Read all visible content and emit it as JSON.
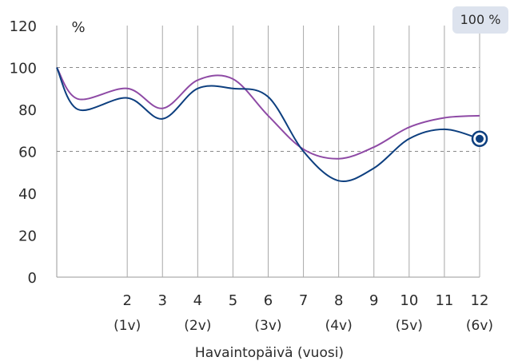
{
  "chart_data": {
    "type": "line",
    "unit_label": "%",
    "badge": "100 %",
    "xlabel": "Havaintopäivä (vuosi)",
    "ylim": [
      0,
      120
    ],
    "yticks": [
      0,
      20,
      40,
      60,
      80,
      100,
      120
    ],
    "xlim": [
      0,
      12
    ],
    "xticks": [
      {
        "x": 2,
        "label": "2",
        "sub": "(1v)"
      },
      {
        "x": 3,
        "label": "3",
        "sub": ""
      },
      {
        "x": 4,
        "label": "4",
        "sub": "(2v)"
      },
      {
        "x": 5,
        "label": "5",
        "sub": ""
      },
      {
        "x": 6,
        "label": "6",
        "sub": "(3v)"
      },
      {
        "x": 7,
        "label": "7",
        "sub": ""
      },
      {
        "x": 8,
        "label": "8",
        "sub": "(4v)"
      },
      {
        "x": 9,
        "label": "9",
        "sub": ""
      },
      {
        "x": 10,
        "label": "10",
        "sub": "(5v)"
      },
      {
        "x": 11,
        "label": "11",
        "sub": ""
      },
      {
        "x": 12,
        "label": "12",
        "sub": "(6v)"
      }
    ],
    "dashed_gridlines": [
      100,
      60
    ],
    "series": [
      {
        "color": "#0d3f7f",
        "points": [
          [
            0,
            100
          ],
          [
            0.6,
            80
          ],
          [
            2,
            85.5
          ],
          [
            3,
            75.5
          ],
          [
            4,
            90
          ],
          [
            5,
            90
          ],
          [
            6,
            86
          ],
          [
            7,
            60
          ],
          [
            8,
            46
          ],
          [
            9,
            52
          ],
          [
            10,
            66
          ],
          [
            11,
            70.5
          ],
          [
            12,
            66
          ]
        ],
        "end_marker": true
      },
      {
        "color": "#8e4aa5",
        "points": [
          [
            0,
            100
          ],
          [
            0.6,
            85
          ],
          [
            2,
            90
          ],
          [
            3,
            80.5
          ],
          [
            4,
            94
          ],
          [
            5,
            94.5
          ],
          [
            6,
            77
          ],
          [
            7,
            61
          ],
          [
            8,
            56.5
          ],
          [
            9,
            62
          ],
          [
            10,
            71.5
          ],
          [
            11,
            76
          ],
          [
            12,
            77
          ]
        ],
        "end_marker": false
      }
    ]
  }
}
